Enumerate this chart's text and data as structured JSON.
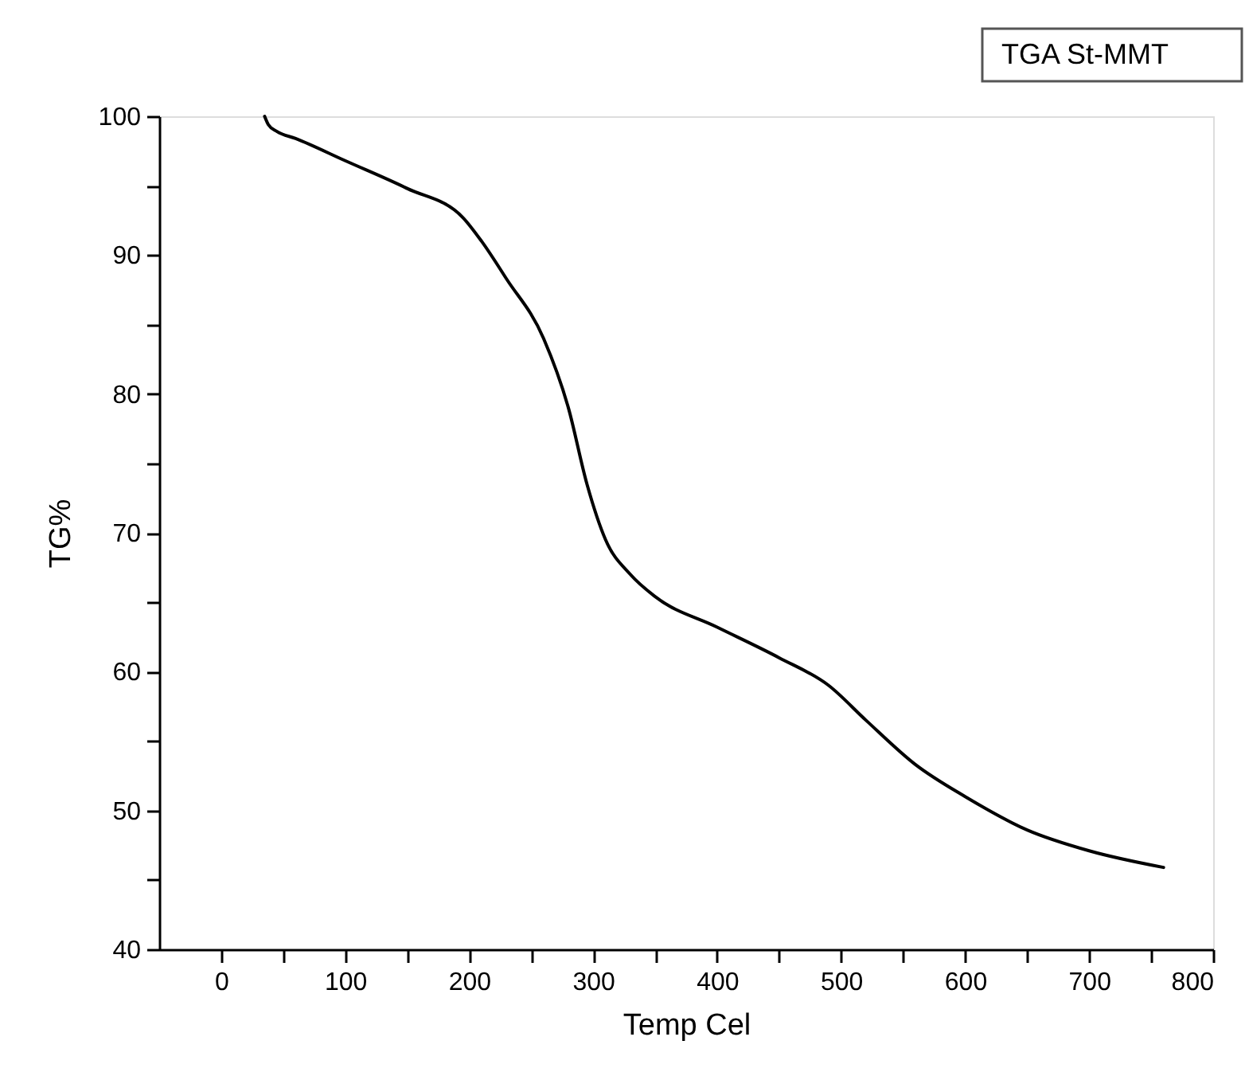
{
  "chart_data": {
    "type": "line",
    "xlabel": "Temp Cel",
    "ylabel": "TG%",
    "annotations": [
      "TGA St-MMT"
    ],
    "x": [
      35,
      38,
      45,
      60,
      100,
      150,
      195,
      210,
      230,
      260,
      280,
      295,
      310,
      330,
      350,
      400,
      450,
      490,
      520,
      560,
      600,
      650,
      700,
      760
    ],
    "series": [
      {
        "color": "#000000",
        "values": [
          100,
          99.4,
          98.9,
          98.4,
          96.8,
          94.8,
          92.7,
          91,
          88.3,
          84,
          79,
          73.5,
          69.5,
          67,
          65.4,
          63.2,
          61,
          59,
          56.5,
          53.3,
          51,
          48.6,
          47.1,
          45.9
        ]
      }
    ],
    "xlim": [
      -50,
      800
    ],
    "ylim": [
      40,
      100
    ],
    "xticks": [
      0,
      {
        "value": 50,
        "label": null
      },
      100,
      {
        "value": 150,
        "label": null
      },
      200,
      {
        "value": 250,
        "label": null
      },
      300,
      {
        "value": 350,
        "label": null
      },
      400,
      {
        "value": 450,
        "label": null
      },
      500,
      {
        "value": 550,
        "label": null
      },
      600,
      {
        "value": 650,
        "label": null
      },
      700,
      {
        "value": 750,
        "label": null
      },
      800
    ],
    "yticks": [
      40,
      {
        "value": 45,
        "label": null
      },
      50,
      {
        "value": 55,
        "label": null
      },
      60,
      {
        "value": 65,
        "label": null
      },
      70,
      {
        "value": 75,
        "label": null
      },
      80,
      {
        "value": 85,
        "label": null
      },
      90,
      {
        "value": 95,
        "label": null
      },
      100
    ],
    "grid": false,
    "legend": false,
    "marker": "none",
    "line_style": "solid"
  }
}
